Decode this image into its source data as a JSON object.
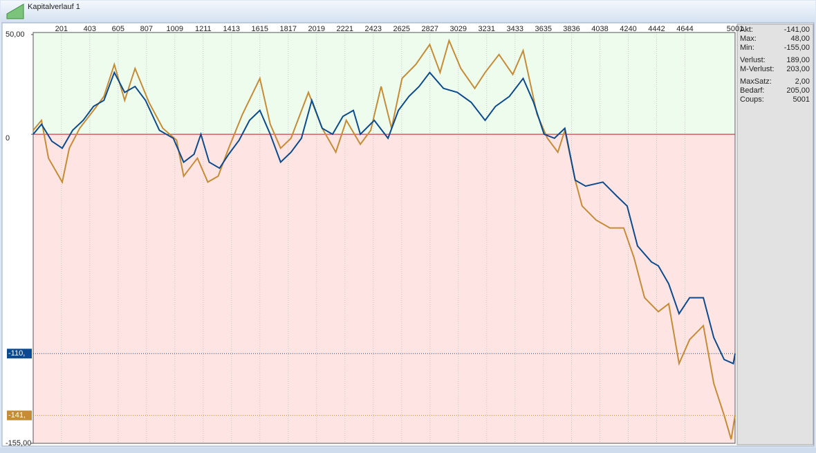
{
  "window": {
    "title": "Kapitalverlauf 1"
  },
  "chart_data": {
    "type": "line",
    "xlim": [
      0,
      5001
    ],
    "ylim": [
      -155,
      50
    ],
    "xticks": [
      201,
      403,
      605,
      807,
      1009,
      1211,
      1413,
      1615,
      1817,
      2019,
      2221,
      2423,
      2625,
      2827,
      3029,
      3231,
      3433,
      3635,
      3836,
      4038,
      4240,
      4442,
      4644,
      5001
    ],
    "yticks": [
      {
        "value": 50,
        "label": "50,00"
      },
      0,
      {
        "value": -155,
        "label": "-155,00"
      }
    ],
    "positive_color": "#eefcee",
    "negative_color": "#fee4e2",
    "zero_color": "#b22222",
    "series": [
      {
        "color": "#c58b35",
        "x": [
          0,
          59,
          109,
          207,
          257,
          331,
          430,
          504,
          578,
          652,
          726,
          825,
          924,
          1022,
          1072,
          1170,
          1244,
          1318,
          1393,
          1491,
          1615,
          1689,
          1763,
          1837,
          1961,
          2059,
          2156,
          2231,
          2331,
          2405,
          2479,
          2553,
          2628,
          2726,
          2825,
          2899,
          2963,
          3047,
          3146,
          3220,
          3319,
          3417,
          3491,
          3590,
          3664,
          3738,
          3788,
          3862,
          3911,
          4010,
          4109,
          4207,
          4281,
          4356,
          4454,
          4528,
          4602,
          4677,
          4775,
          4849,
          4923,
          4973,
          5001
        ],
        "values": [
          2,
          7,
          -12,
          -24,
          -7,
          3,
          12,
          19,
          35,
          17,
          33,
          16,
          3,
          -3,
          -21,
          -12,
          -24,
          -21,
          -7,
          10,
          28,
          5,
          -7,
          -2,
          21,
          3,
          -9,
          7,
          -5,
          2,
          24,
          3,
          28,
          35,
          45,
          31,
          47,
          33,
          23,
          31,
          40,
          30,
          42,
          10,
          -2,
          -9,
          2,
          -23,
          -36,
          -43,
          -47,
          -47,
          -62,
          -82,
          -89,
          -85,
          -115,
          -103,
          -96,
          -125,
          -141,
          -153,
          -141
        ]
      },
      {
        "color": "#0b4a8e",
        "x": [
          0,
          59,
          133,
          207,
          281,
          356,
          430,
          504,
          578,
          652,
          726,
          800,
          899,
          998,
          1072,
          1146,
          1195,
          1254,
          1328,
          1393,
          1467,
          1541,
          1615,
          1689,
          1763,
          1837,
          1911,
          1985,
          2059,
          2133,
          2207,
          2281,
          2331,
          2430,
          2528,
          2602,
          2677,
          2750,
          2825,
          2923,
          3022,
          3121,
          3220,
          3294,
          3393,
          3491,
          3565,
          3640,
          3714,
          3788,
          3862,
          3936,
          4059,
          4158,
          4232,
          4306,
          4405,
          4454,
          4528,
          4602,
          4677,
          4775,
          4849,
          4923,
          4988,
          5001
        ],
        "values": [
          0,
          5,
          -3.5,
          -7,
          2,
          7,
          14,
          17,
          31,
          21,
          24,
          17,
          2,
          -2,
          -14,
          -10,
          0,
          -14,
          -17,
          -10,
          -3,
          7,
          12,
          0,
          -14,
          -9,
          -2,
          17,
          3,
          0,
          9,
          12,
          0,
          7,
          -2,
          12,
          19,
          24,
          31,
          23,
          21,
          16,
          7,
          14,
          19,
          28,
          16,
          0,
          -2,
          3,
          -23,
          -26,
          -24,
          -31,
          -36,
          -56,
          -64,
          -66,
          -75,
          -90,
          -82,
          -82,
          -102,
          -113,
          -115,
          -110
        ]
      }
    ],
    "markers": [
      {
        "value": -110,
        "label": "-110,",
        "color": "#0b4a8e"
      },
      {
        "value": -141,
        "label": "-141,",
        "color": "#c58b35"
      }
    ]
  },
  "stats": [
    [
      {
        "label": "Akt:",
        "value": "-141,00"
      },
      {
        "label": "Max:",
        "value": "48,00"
      },
      {
        "label": "Min:",
        "value": "-155,00"
      }
    ],
    [
      {
        "label": "Verlust:",
        "value": "189,00"
      },
      {
        "label": "M-Verlust:",
        "value": "203,00"
      }
    ],
    [
      {
        "label": "MaxSatz:",
        "value": "2,00"
      },
      {
        "label": "Bedarf:",
        "value": "205,00"
      },
      {
        "label": "Coups:",
        "value": "5001"
      }
    ]
  ]
}
